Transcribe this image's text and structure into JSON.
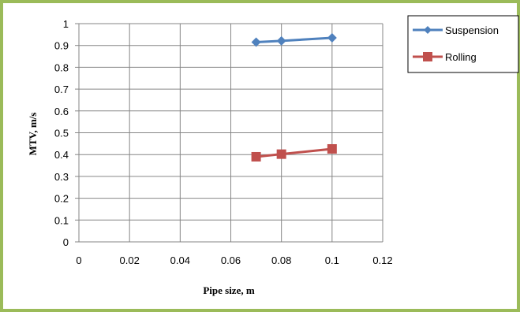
{
  "chart_data": {
    "type": "line",
    "title": "",
    "xlabel": "Pipe size, m",
    "ylabel": "MTV, m/s",
    "xlim": [
      0,
      0.12
    ],
    "ylim": [
      0,
      1
    ],
    "x_ticks": [
      "0",
      "0.02",
      "0.04",
      "0.06",
      "0.08",
      "0.1",
      "0.12"
    ],
    "y_ticks": [
      "0",
      "0.1",
      "0.2",
      "0.3",
      "0.4",
      "0.5",
      "0.6",
      "0.7",
      "0.8",
      "0.9",
      "1"
    ],
    "grid": true,
    "legend_position": "right",
    "series": [
      {
        "name": "Suspension",
        "color": "#4f81bd",
        "marker": "diamond",
        "points": [
          {
            "x": 0.07,
            "y": 0.915
          },
          {
            "x": 0.08,
            "y": 0.921
          },
          {
            "x": 0.1,
            "y": 0.935
          }
        ]
      },
      {
        "name": "Rolling",
        "color": "#c0504d",
        "marker": "square",
        "points": [
          {
            "x": 0.07,
            "y": 0.39
          },
          {
            "x": 0.08,
            "y": 0.402
          },
          {
            "x": 0.1,
            "y": 0.426
          }
        ]
      }
    ]
  }
}
